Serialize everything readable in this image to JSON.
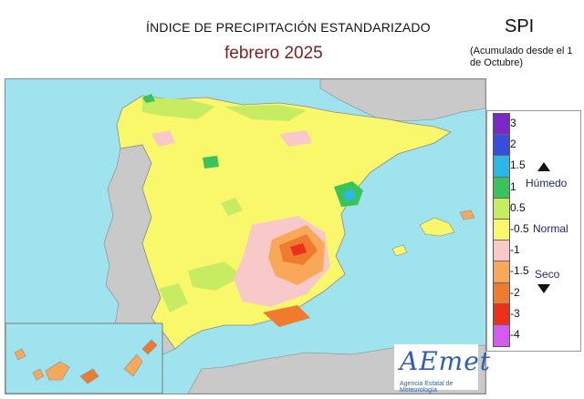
{
  "header": {
    "title": "ÍNDICE DE PRECIPITACIÓN ESTANDARIZADO",
    "subtitle": "febrero  2025",
    "index_label": "SPI",
    "index_note": "(Acumulado desde el 1 de Octubre)"
  },
  "legend": {
    "ticks": [
      "3",
      "2",
      "1.5",
      "1",
      "0.5",
      "-0.5",
      "-1",
      "-1.5",
      "-2",
      "-3",
      "-4"
    ],
    "colors": [
      "#7b28c8",
      "#3a4cdb",
      "#2bb8e8",
      "#3bc35b",
      "#c7ec62",
      "#f8f86a",
      "#f9c8c8",
      "#f9a85a",
      "#f07a2e",
      "#ee2f1c",
      "#d75af0"
    ],
    "wet_label": "Húmedo",
    "normal_label": "Normal",
    "dry_label": "Seco"
  },
  "logo": {
    "name": "AEmet",
    "caption": "Agencia Estatal de Meteorología"
  },
  "map": {
    "sea_color": "#9fe3ee",
    "land_other_color": "#c9c9c9",
    "spain_base_color": "#f8f86a"
  }
}
